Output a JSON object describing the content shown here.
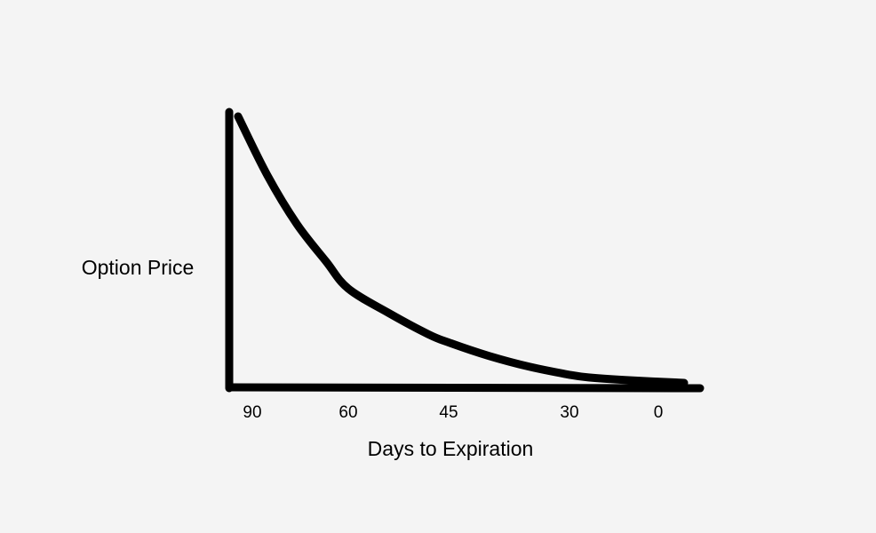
{
  "chart_data": {
    "type": "line",
    "xlabel": "Days to Expiration",
    "ylabel": "Option Price",
    "x_ticks": [
      "90",
      "60",
      "45",
      "30",
      "0"
    ],
    "x_reversed": true,
    "y_ticks": [],
    "series": [
      {
        "points": [
          {
            "x": 90,
            "y": 1.0
          },
          {
            "x": 82,
            "y": 0.78
          },
          {
            "x": 74,
            "y": 0.6
          },
          {
            "x": 66,
            "y": 0.46
          },
          {
            "x": 60,
            "y": 0.36
          },
          {
            "x": 54,
            "y": 0.27
          },
          {
            "x": 48,
            "y": 0.19
          },
          {
            "x": 45,
            "y": 0.16
          },
          {
            "x": 40,
            "y": 0.11
          },
          {
            "x": 35,
            "y": 0.07
          },
          {
            "x": 30,
            "y": 0.04
          },
          {
            "x": 25,
            "y": 0.03
          },
          {
            "x": 15,
            "y": 0.02
          },
          {
            "x": 0,
            "y": 0.01
          }
        ]
      }
    ],
    "grid": false,
    "legend": "none",
    "line_color": "#000000",
    "background_color": "#f4f4f4"
  }
}
